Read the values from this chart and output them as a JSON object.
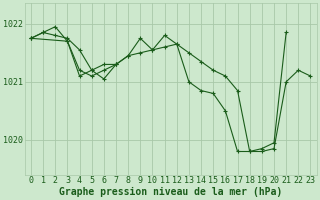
{
  "background_color": "#cde8cd",
  "plot_bg_color": "#cde8cd",
  "line_color": "#1a5c1a",
  "marker_color": "#1a5c1a",
  "grid_color": "#a8c8a8",
  "xlabel": "Graphe pression niveau de la mer (hPa)",
  "xlabel_fontsize": 7,
  "tick_fontsize": 6,
  "ytick_labels": [
    1020,
    1021,
    1022
  ],
  "ylim": [
    1019.4,
    1022.35
  ],
  "xlim": [
    -0.5,
    23.5
  ],
  "series": [
    {
      "x": [
        0,
        1,
        2,
        3,
        4,
        5,
        6,
        7,
        8,
        9,
        10,
        11,
        12,
        13,
        14,
        15,
        16,
        17,
        18,
        19,
        20,
        21,
        22,
        23
      ],
      "y": [
        1021.75,
        1021.85,
        1021.8,
        1021.75,
        1021.55,
        1021.2,
        1021.05,
        1021.3,
        1021.45,
        1021.5,
        1021.55,
        1021.6,
        1021.65,
        1021.5,
        1021.35,
        1021.2,
        1021.1,
        1020.85,
        1019.8,
        1019.8,
        1019.85,
        1021.0,
        1021.2,
        1021.1
      ]
    },
    {
      "x": [
        0,
        1,
        2,
        3,
        4,
        5,
        6,
        7,
        8,
        9,
        10,
        11,
        12,
        13,
        14,
        15,
        16,
        17,
        18,
        19,
        20,
        21
      ],
      "y": [
        1021.75,
        1021.85,
        1021.95,
        1021.7,
        1021.2,
        1021.1,
        1021.2,
        1021.3,
        1021.45,
        1021.75,
        1021.55,
        1021.8,
        1021.65,
        1021.0,
        1020.85,
        1020.8,
        1020.5,
        1019.8,
        1019.8,
        1019.85,
        1019.95,
        1021.85
      ]
    },
    {
      "x": [
        0,
        3,
        4,
        5,
        6,
        7
      ],
      "y": [
        1021.75,
        1021.7,
        1021.1,
        1021.2,
        1021.3,
        1021.3
      ]
    }
  ],
  "xtick_positions": [
    0,
    1,
    2,
    3,
    4,
    5,
    6,
    7,
    8,
    9,
    10,
    11,
    12,
    13,
    14,
    15,
    16,
    17,
    18,
    19,
    20,
    21,
    22,
    23
  ]
}
